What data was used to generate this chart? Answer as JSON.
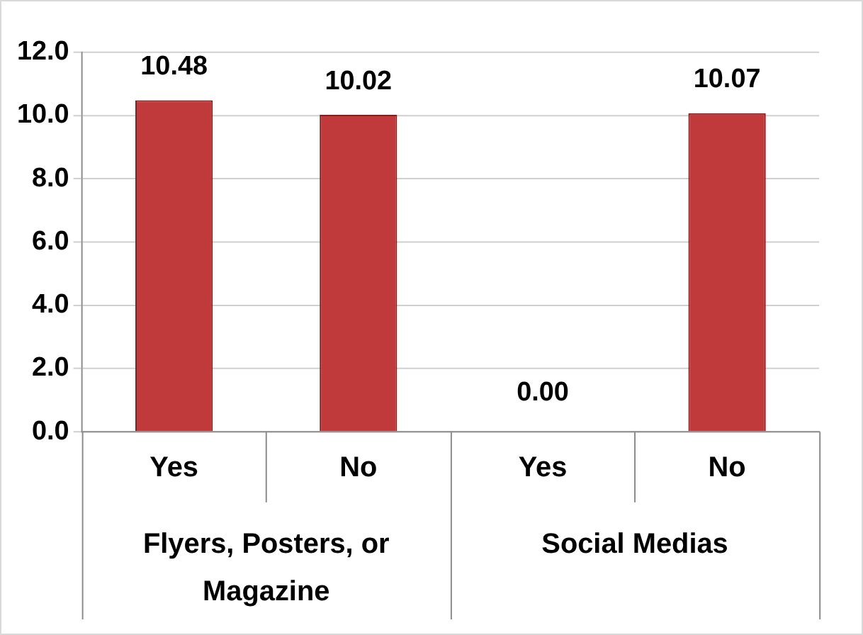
{
  "chart_data": {
    "type": "bar",
    "categories": [
      "Yes",
      "No",
      "Yes",
      "No"
    ],
    "values": [
      10.48,
      10.02,
      0.0,
      10.07
    ],
    "color": "#c0393b",
    "ylim": [
      0,
      12
    ],
    "yticks": [
      {
        "value": 0,
        "label": "0.0"
      },
      {
        "value": 2,
        "label": "2.0"
      },
      {
        "value": 4,
        "label": "4.0"
      },
      {
        "value": 6,
        "label": "6.0"
      },
      {
        "value": 8,
        "label": "8.0"
      },
      {
        "value": 10,
        "label": "10.0"
      },
      {
        "value": 12,
        "label": "12.0"
      }
    ],
    "grid": "y",
    "data_labels": true,
    "value_labels": [
      "10.48",
      "10.02",
      "0.00",
      "10.07"
    ],
    "annotations": [
      "Flyers, Posters, or Magazine",
      "Social Medias"
    ]
  }
}
